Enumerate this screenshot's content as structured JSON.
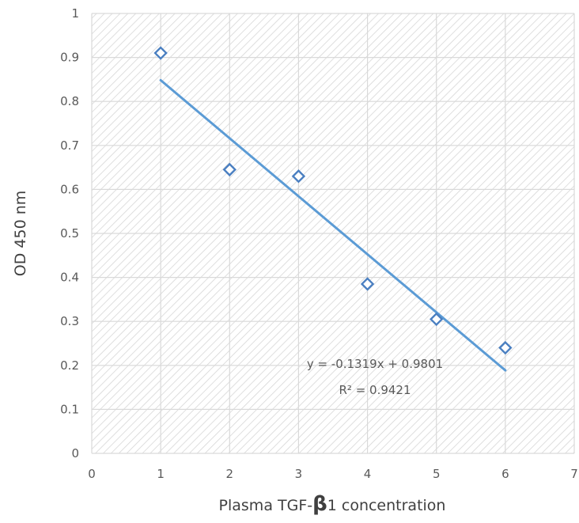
{
  "chart_data": {
    "type": "scatter",
    "title": "",
    "xlabel_prefix": "Plasma TGF-",
    "xlabel_symbol": "β",
    "xlabel_suffix": "1 concentration",
    "ylabel": "OD 450 nm",
    "xlim": [
      0,
      7
    ],
    "ylim": [
      0,
      1
    ],
    "x_ticks": [
      "0",
      "1",
      "2",
      "3",
      "4",
      "5",
      "6",
      "7"
    ],
    "y_ticks": [
      "0",
      "0.1",
      "0.2",
      "0.3",
      "0.4",
      "0.5",
      "0.6",
      "0.7",
      "0.8",
      "0.9",
      "1"
    ],
    "grid": true,
    "series": [
      {
        "x": [
          1,
          2,
          3,
          4,
          5,
          6
        ],
        "y": [
          0.91,
          0.645,
          0.63,
          0.385,
          0.305,
          0.24
        ],
        "marker": "diamond-open",
        "color": "#4a7fc1"
      }
    ],
    "trendline": {
      "slope": -0.1319,
      "intercept": 0.9801,
      "x_range": [
        1,
        6
      ],
      "color": "#5b9bd5",
      "equation": "y = -0.1319x + 0.9801",
      "r_squared": "R² = 0.9421"
    }
  }
}
